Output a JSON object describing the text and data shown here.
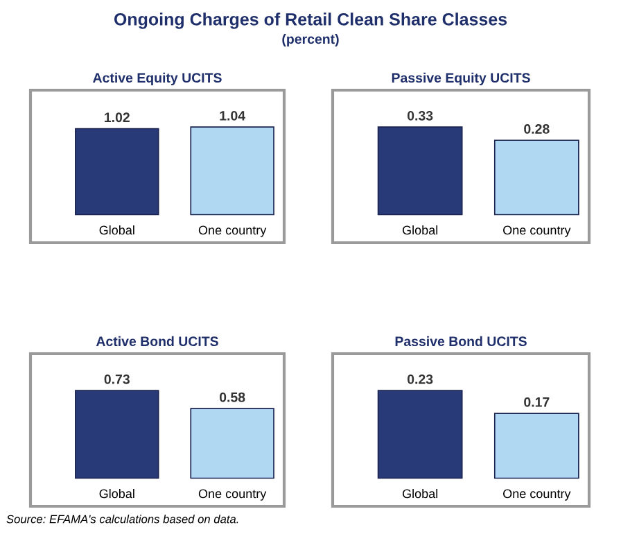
{
  "chart_data": [
    {
      "type": "other",
      "title": "Ongoing Charges of Retail Clean Share Classes",
      "subtitle": "(percent)",
      "annotations": [
        "Source: EFAMA's calculations based on data."
      ]
    },
    {
      "type": "bar",
      "title": "Active Equity UCITS",
      "categories": [
        "Global",
        "One country"
      ],
      "values": [
        1.02,
        1.04
      ],
      "colors": [
        "#283a78",
        "#b0d8f2"
      ],
      "data_labels": true,
      "tick_labels": "x"
    },
    {
      "type": "bar",
      "title": "Passive Equity UCITS",
      "categories": [
        "Global",
        "One country"
      ],
      "values": [
        0.33,
        0.28
      ],
      "colors": [
        "#283a78",
        "#b0d8f2"
      ],
      "data_labels": true,
      "tick_labels": "x"
    },
    {
      "type": "bar",
      "title": "Active Bond UCITS",
      "categories": [
        "Global",
        "One country"
      ],
      "values": [
        0.73,
        0.58
      ],
      "colors": [
        "#283a78",
        "#b0d8f2"
      ],
      "data_labels": true,
      "tick_labels": "x"
    },
    {
      "type": "bar",
      "title": "Passive Bond UCITS",
      "categories": [
        "Global",
        "One country"
      ],
      "values": [
        0.23,
        0.17
      ],
      "colors": [
        "#283a78",
        "#b0d8f2"
      ],
      "data_labels": true,
      "tick_labels": "x"
    }
  ]
}
